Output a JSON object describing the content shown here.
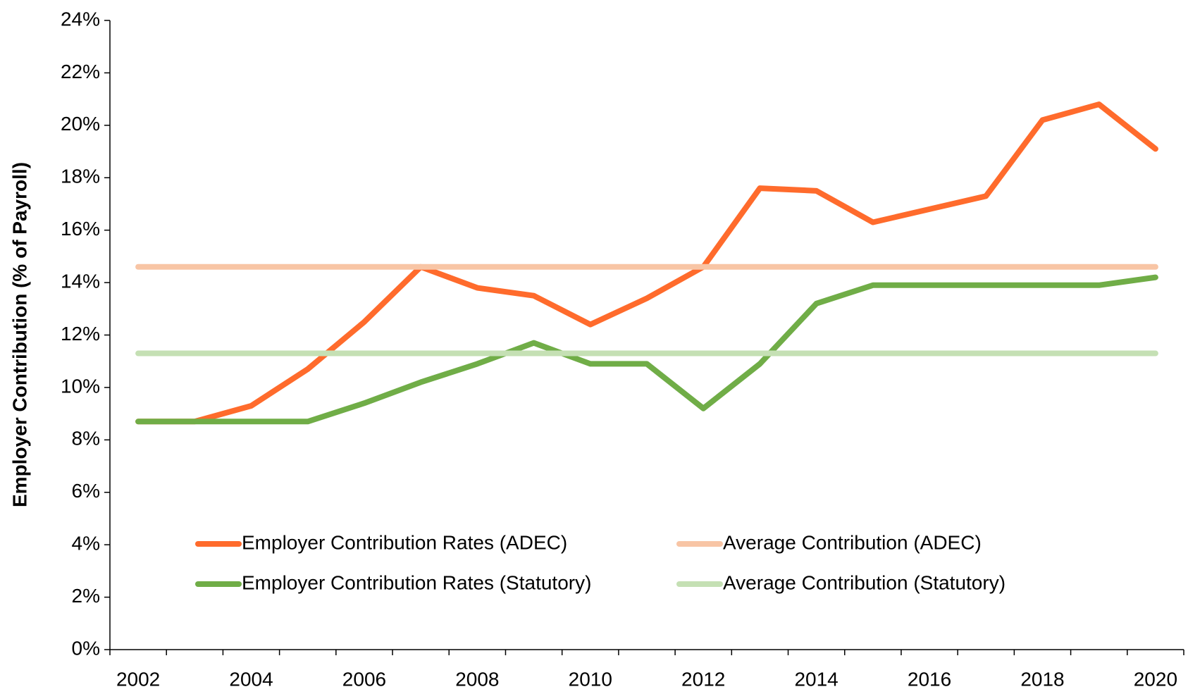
{
  "chart_data": {
    "type": "line",
    "y_label": "Employer Contribution (% of Payroll)",
    "categories": [
      "2002",
      null,
      "2004",
      null,
      "2006",
      null,
      "2008",
      null,
      "2010",
      null,
      "2012",
      null,
      "2014",
      null,
      "2016",
      null,
      "2018",
      null,
      "2020"
    ],
    "series": [
      {
        "name": "Employer Contribution Rates (ADEC)",
        "color": "#ff6b2c",
        "values": [
          8.7,
          8.7,
          9.3,
          10.7,
          12.5,
          14.6,
          13.8,
          13.5,
          12.4,
          13.4,
          14.6,
          17.6,
          17.5,
          16.3,
          16.8,
          17.3,
          20.2,
          20.8,
          19.1
        ]
      },
      {
        "name": "Average Contribution (ADEC)",
        "color": "#f8c5a5",
        "values": [
          14.6,
          14.6,
          14.6,
          14.6,
          14.6,
          14.6,
          14.6,
          14.6,
          14.6,
          14.6,
          14.6,
          14.6,
          14.6,
          14.6,
          14.6,
          14.6,
          14.6,
          14.6,
          14.6
        ]
      },
      {
        "name": "Employer Contribution Rates (Statutory)",
        "color": "#70ad47",
        "values": [
          8.7,
          8.7,
          8.7,
          8.7,
          9.4,
          10.2,
          10.9,
          11.7,
          10.9,
          10.9,
          9.2,
          10.9,
          13.2,
          13.9,
          13.9,
          13.9,
          13.9,
          13.9,
          14.2
        ]
      },
      {
        "name": "Average Contribution (Statutory)",
        "color": "#c5e0b4",
        "values": [
          11.3,
          11.3,
          11.3,
          11.3,
          11.3,
          11.3,
          11.3,
          11.3,
          11.3,
          11.3,
          11.3,
          11.3,
          11.3,
          11.3,
          11.3,
          11.3,
          11.3,
          11.3,
          11.3
        ]
      }
    ],
    "legend_order": [
      0,
      1,
      2,
      3
    ],
    "ylim": [
      0,
      24
    ],
    "yticks": [
      {
        "value": 0,
        "label": "0%"
      },
      {
        "value": 2,
        "label": "2%"
      },
      {
        "value": 4,
        "label": "4%"
      },
      {
        "value": 6,
        "label": "6%"
      },
      {
        "value": 8,
        "label": "8%"
      },
      {
        "value": 10,
        "label": "10%"
      },
      {
        "value": 12,
        "label": "12%"
      },
      {
        "value": 14,
        "label": "14%"
      },
      {
        "value": 16,
        "label": "16%"
      },
      {
        "value": 18,
        "label": "18%"
      },
      {
        "value": 20,
        "label": "20%"
      },
      {
        "value": 22,
        "label": "22%"
      },
      {
        "value": 24,
        "label": "24%"
      }
    ],
    "grid": false,
    "legend_position": "bottom-left"
  }
}
